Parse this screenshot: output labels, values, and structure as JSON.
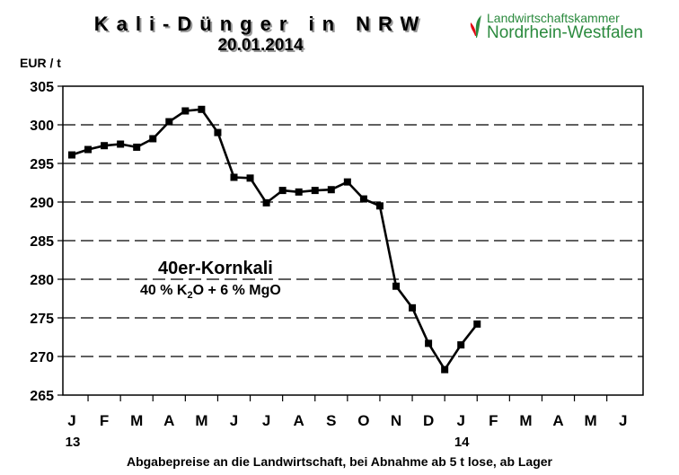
{
  "chart_data": {
    "type": "line",
    "title": "Kali-Dünger in NRW",
    "subtitle": "20.01.2014",
    "ylabel": "EUR / t",
    "ylim": [
      265,
      305
    ],
    "yticks": [
      305,
      300,
      295,
      290,
      285,
      280,
      275,
      270,
      265
    ],
    "months": [
      "J",
      "F",
      "M",
      "A",
      "M",
      "J",
      "J",
      "A",
      "S",
      "O",
      "N",
      "D",
      "J",
      "F",
      "M",
      "A",
      "M",
      "J"
    ],
    "year_labels": [
      {
        "label": "13",
        "month_index": 0
      },
      {
        "label": "14",
        "month_index": 12
      }
    ],
    "grid": "horizontal dashed",
    "series": [
      {
        "name": "",
        "color": "#000000",
        "points": [
          [
            0.0,
            296.1
          ],
          [
            0.5,
            296.8
          ],
          [
            1.0,
            297.3
          ],
          [
            1.5,
            297.5
          ],
          [
            2.0,
            297.1
          ],
          [
            2.5,
            298.2
          ],
          [
            3.0,
            300.4
          ],
          [
            3.5,
            301.8
          ],
          [
            4.0,
            302.0
          ],
          [
            4.5,
            299.0
          ],
          [
            5.0,
            293.2
          ],
          [
            5.5,
            293.1
          ],
          [
            6.0,
            289.9
          ],
          [
            6.5,
            291.5
          ],
          [
            7.0,
            291.3
          ],
          [
            7.5,
            291.5
          ],
          [
            8.0,
            291.6
          ],
          [
            8.5,
            292.6
          ],
          [
            9.0,
            290.4
          ],
          [
            9.5,
            289.5
          ],
          [
            10.0,
            279.1
          ],
          [
            10.5,
            276.3
          ],
          [
            11.0,
            271.7
          ],
          [
            11.5,
            268.3
          ],
          [
            12.0,
            271.5
          ],
          [
            12.5,
            274.2
          ]
        ]
      }
    ],
    "annotation": {
      "name": "40er-Kornkali",
      "formula_prefix": "40 %  K",
      "formula_sub": "2",
      "formula_suffix": "O + 6 % MgO"
    },
    "footer": "Abgabepreise an die Landwirtschaft, bei Abnahme ab 5 t lose, ab Lager"
  },
  "logo": {
    "line1": "Landwirtschaftskammer",
    "line2": "Nordrhein-Westfalen",
    "color": "#2b8a3e"
  }
}
